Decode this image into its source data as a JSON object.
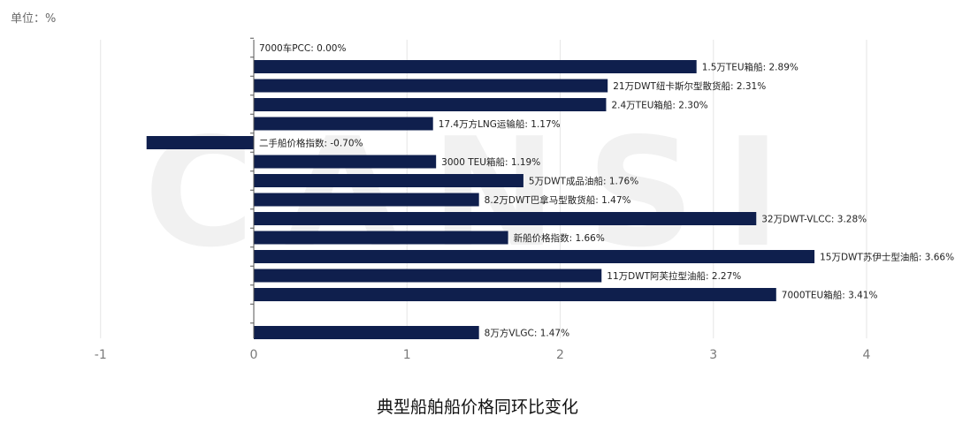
{
  "unit_label": "单位：%",
  "watermark_text": "CANSI",
  "colors": {
    "bar": "#0f1f4d",
    "grid": "#e6e6e6",
    "axis": "#555555",
    "tick_text": "#7a7a7a"
  },
  "chart_data": {
    "type": "bar",
    "orientation": "horizontal",
    "title": "典型船舶船价格同环比变化",
    "xlabel": "",
    "ylabel": "",
    "xlim": [
      -1,
      4.2
    ],
    "xticks": [
      -1,
      0,
      1,
      2,
      3,
      4
    ],
    "grid": true,
    "bars": [
      {
        "label": "7000车PCC: 0.00%",
        "value": 0.0
      },
      {
        "label": "1.5万TEU箱船: 2.89%",
        "value": 2.89
      },
      {
        "label": "21万DWT纽卡斯尔型散货船: 2.31%",
        "value": 2.31
      },
      {
        "label": "2.4万TEU箱船: 2.30%",
        "value": 2.3
      },
      {
        "label": "17.4万方LNG运输船: 1.17%",
        "value": 1.17
      },
      {
        "label": "二手船价格指数: -0.70%",
        "value": -0.7
      },
      {
        "label": "3000 TEU箱船: 1.19%",
        "value": 1.19
      },
      {
        "label": "5万DWT成品油船: 1.76%",
        "value": 1.76
      },
      {
        "label": "8.2万DWT巴拿马型散货船: 1.47%",
        "value": 1.47
      },
      {
        "label": "32万DWT-VLCC: 3.28%",
        "value": 3.28
      },
      {
        "label": "新船价格指数: 1.66%",
        "value": 1.66
      },
      {
        "label": "15万DWT苏伊士型油船: 3.66%",
        "value": 3.66
      },
      {
        "label": "11万DWT阿芙拉型油船: 2.27%",
        "value": 2.27
      },
      {
        "label": "7000TEU箱船: 3.41%",
        "value": 3.41
      },
      {
        "label": "",
        "value": null
      },
      {
        "label": "8万方VLGC: 1.47%",
        "value": 1.47
      }
    ]
  }
}
